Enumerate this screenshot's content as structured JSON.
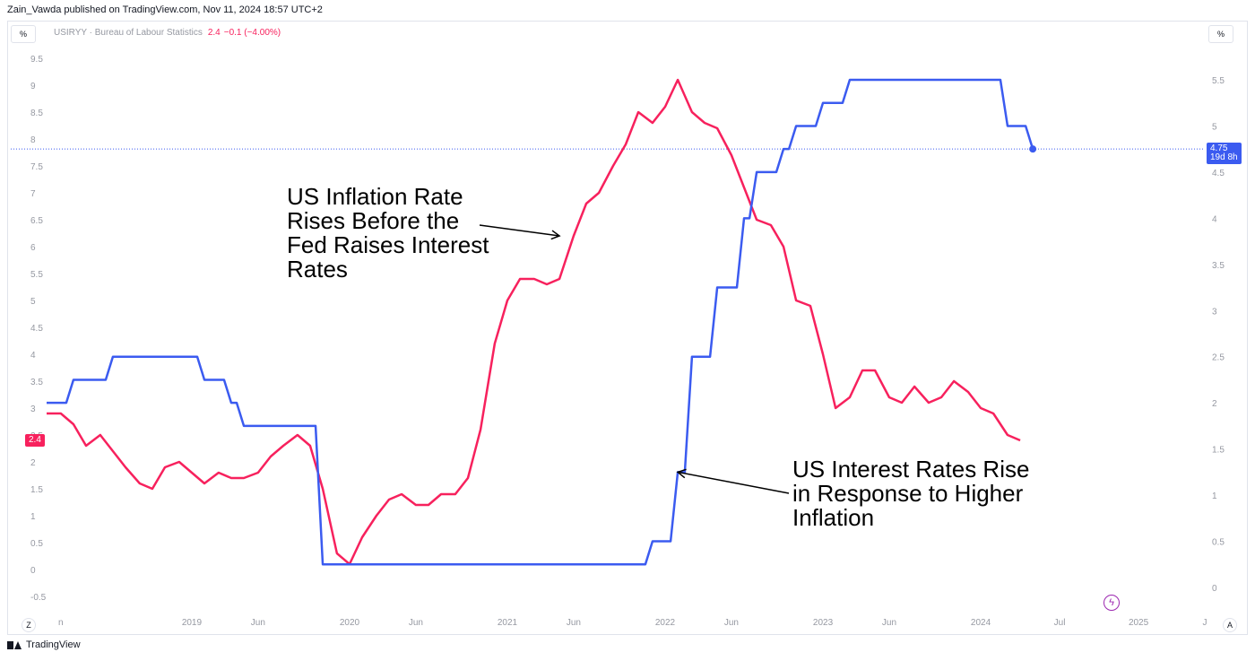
{
  "header": {
    "publisher_line": "Zain_Vawda published on TradingView.com, Nov 11, 2024 18:57 UTC+2"
  },
  "toolbar": {
    "left_unit": "%",
    "right_unit": "%",
    "z_button": "Z",
    "a_button": "A"
  },
  "legend": {
    "symbol_text": "USIRYY · Bureau of Labour Statistics",
    "value": "2.4",
    "change": "−0.1 (−4.00%)"
  },
  "badges": {
    "inflation_value": "2.4",
    "rate_value": "4.75",
    "rate_countdown": "19d 8h"
  },
  "footer": {
    "brand": "TradingView"
  },
  "colors": {
    "inflation": "#f7215d",
    "rate": "#3b5bf0",
    "axis_text": "#9598a1",
    "grid": "#e0e3eb",
    "annotation": "#000000"
  },
  "icons": {
    "quick_action": "lightning-icon"
  },
  "chart_data": {
    "type": "line",
    "x_axis": {
      "ticks": [
        {
          "label": "n",
          "date": "2018.17"
        },
        {
          "label": "2019",
          "date": "2019.00"
        },
        {
          "label": "Jun",
          "date": "2019.42"
        },
        {
          "label": "2020",
          "date": "2020.00"
        },
        {
          "label": "Jun",
          "date": "2020.42"
        },
        {
          "label": "2021",
          "date": "2021.00"
        },
        {
          "label": "Jun",
          "date": "2021.42"
        },
        {
          "label": "2022",
          "date": "2022.00"
        },
        {
          "label": "Jun",
          "date": "2022.42"
        },
        {
          "label": "2023",
          "date": "2023.00"
        },
        {
          "label": "Jun",
          "date": "2023.42"
        },
        {
          "label": "2024",
          "date": "2024.00"
        },
        {
          "label": "Jul",
          "date": "2024.50"
        },
        {
          "label": "2025",
          "date": "2025.00"
        },
        {
          "label": "J",
          "date": "2025.42"
        }
      ]
    },
    "y_left": {
      "ticks": [
        "9.5",
        "9",
        "8.5",
        "8",
        "7.5",
        "7",
        "6.5",
        "6",
        "5.5",
        "5",
        "4.5",
        "4",
        "3.5",
        "3",
        "2.5",
        "2",
        "1.5",
        "1",
        "0.5",
        "0",
        "-0.5"
      ],
      "range": [
        -0.5,
        9.5
      ]
    },
    "y_right": {
      "ticks": [
        "5.5",
        "5",
        "4.5",
        "4",
        "3.5",
        "3",
        "2.5",
        "2",
        "1.5",
        "1",
        "0.5",
        "0"
      ],
      "range": [
        0,
        5.5
      ]
    },
    "series": [
      {
        "axis": "left",
        "color": "#f7215d",
        "points": [
          [
            2018.08,
            2.9
          ],
          [
            2018.17,
            2.9
          ],
          [
            2018.25,
            2.7
          ],
          [
            2018.33,
            2.3
          ],
          [
            2018.42,
            2.5
          ],
          [
            2018.5,
            2.2
          ],
          [
            2018.58,
            1.9
          ],
          [
            2018.67,
            1.6
          ],
          [
            2018.75,
            1.5
          ],
          [
            2018.83,
            1.9
          ],
          [
            2018.92,
            2.0
          ],
          [
            2019.0,
            1.8
          ],
          [
            2019.08,
            1.6
          ],
          [
            2019.17,
            1.8
          ],
          [
            2019.25,
            1.7
          ],
          [
            2019.33,
            1.7
          ],
          [
            2019.42,
            1.8
          ],
          [
            2019.5,
            2.1
          ],
          [
            2019.58,
            2.3
          ],
          [
            2019.67,
            2.5
          ],
          [
            2019.75,
            2.3
          ],
          [
            2019.83,
            1.5
          ],
          [
            2019.92,
            0.3
          ],
          [
            2020.0,
            0.1
          ],
          [
            2020.08,
            0.6
          ],
          [
            2020.17,
            1.0
          ],
          [
            2020.25,
            1.3
          ],
          [
            2020.33,
            1.4
          ],
          [
            2020.42,
            1.2
          ],
          [
            2020.5,
            1.2
          ],
          [
            2020.58,
            1.4
          ],
          [
            2020.67,
            1.4
          ],
          [
            2020.75,
            1.7
          ],
          [
            2020.83,
            2.6
          ],
          [
            2020.92,
            4.2
          ],
          [
            2021.0,
            5.0
          ],
          [
            2021.08,
            5.4
          ],
          [
            2021.17,
            5.4
          ],
          [
            2021.25,
            5.3
          ],
          [
            2021.33,
            5.4
          ],
          [
            2021.42,
            6.2
          ],
          [
            2021.5,
            6.8
          ],
          [
            2021.58,
            7.0
          ],
          [
            2021.67,
            7.5
          ],
          [
            2021.75,
            7.9
          ],
          [
            2021.83,
            8.5
          ],
          [
            2021.92,
            8.3
          ],
          [
            2022.0,
            8.6
          ],
          [
            2022.08,
            9.1
          ],
          [
            2022.17,
            8.5
          ],
          [
            2022.25,
            8.3
          ],
          [
            2022.33,
            8.2
          ],
          [
            2022.42,
            7.7
          ],
          [
            2022.5,
            7.1
          ],
          [
            2022.58,
            6.5
          ],
          [
            2022.67,
            6.4
          ],
          [
            2022.75,
            6.0
          ],
          [
            2022.83,
            5.0
          ],
          [
            2022.92,
            4.9
          ],
          [
            2023.0,
            4.0
          ],
          [
            2023.08,
            3.0
          ],
          [
            2023.17,
            3.2
          ],
          [
            2023.25,
            3.7
          ],
          [
            2023.33,
            3.7
          ],
          [
            2023.42,
            3.2
          ],
          [
            2023.5,
            3.1
          ],
          [
            2023.58,
            3.4
          ],
          [
            2023.67,
            3.1
          ],
          [
            2023.75,
            3.2
          ],
          [
            2023.83,
            3.5
          ],
          [
            2023.92,
            3.3
          ],
          [
            2024.0,
            3.0
          ],
          [
            2024.08,
            2.9
          ],
          [
            2024.17,
            2.5
          ],
          [
            2024.25,
            2.4
          ]
        ]
      },
      {
        "axis": "right",
        "color": "#3b5bf0",
        "points": [
          [
            2018.08,
            2.0
          ],
          [
            2018.17,
            2.0
          ],
          [
            2018.25,
            2.25
          ],
          [
            2018.33,
            2.25
          ],
          [
            2018.42,
            2.25
          ],
          [
            2018.5,
            2.5
          ],
          [
            2018.58,
            2.5
          ],
          [
            2018.67,
            2.5
          ],
          [
            2018.75,
            2.5
          ],
          [
            2018.83,
            2.5
          ],
          [
            2018.92,
            2.5
          ],
          [
            2019.0,
            2.5
          ],
          [
            2019.08,
            2.25
          ],
          [
            2019.17,
            2.25
          ],
          [
            2019.25,
            2.0
          ],
          [
            2019.33,
            1.75
          ],
          [
            2019.42,
            1.75
          ],
          [
            2019.5,
            1.75
          ],
          [
            2019.58,
            1.75
          ],
          [
            2019.67,
            1.75
          ],
          [
            2019.75,
            1.75
          ],
          [
            2019.83,
            0.25
          ],
          [
            2020.0,
            0.25
          ],
          [
            2020.5,
            0.25
          ],
          [
            2021.0,
            0.25
          ],
          [
            2021.5,
            0.25
          ],
          [
            2021.83,
            0.25
          ],
          [
            2021.92,
            0.5
          ],
          [
            2022.0,
            0.5
          ],
          [
            2022.08,
            1.25
          ],
          [
            2022.17,
            2.5
          ],
          [
            2022.25,
            2.5
          ],
          [
            2022.33,
            3.25
          ],
          [
            2022.42,
            3.25
          ],
          [
            2022.5,
            4.0
          ],
          [
            2022.58,
            4.5
          ],
          [
            2022.67,
            4.5
          ],
          [
            2022.75,
            4.75
          ],
          [
            2022.83,
            5.0
          ],
          [
            2022.92,
            5.0
          ],
          [
            2023.0,
            5.25
          ],
          [
            2023.08,
            5.25
          ],
          [
            2023.17,
            5.5
          ],
          [
            2023.5,
            5.5
          ],
          [
            2023.83,
            5.5
          ],
          [
            2024.08,
            5.5
          ],
          [
            2024.17,
            5.0
          ],
          [
            2024.25,
            5.0
          ],
          [
            2024.33,
            4.75
          ]
        ]
      }
    ],
    "annotations": [
      {
        "lines": [
          "US Inflation Rate",
          "Rises Before the",
          "Fed Raises Interest",
          "Rates"
        ],
        "arrow_to": [
          2021.33,
          6.2
        ]
      },
      {
        "lines": [
          "US Interest Rates Rise",
          "in Response to Higher",
          "Inflation"
        ],
        "arrow_to": [
          2022.08,
          1.25
        ]
      }
    ]
  }
}
